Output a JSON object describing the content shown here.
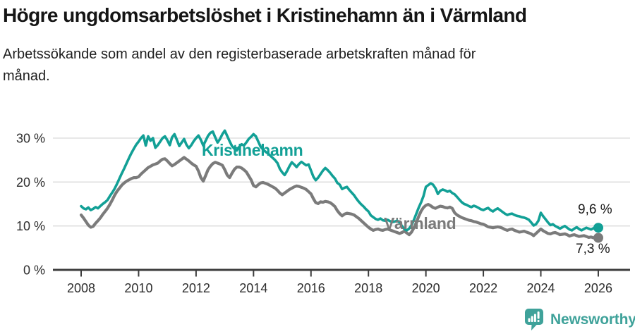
{
  "title": "Högre ungdomsarbetslöshet i Kristinehamn än i Värmland",
  "subtitle": "Arbetssökande som andel av den registerbaserade arbetskraften månad för månad.",
  "branding": {
    "logo_text": "Newsworthy"
  },
  "colors": {
    "kristinehamn": "#12A096",
    "varmland": "#7B7B7B",
    "grid": "#D9D9D9",
    "axis": "#3C3C3C",
    "tick_text": "#2E2E2E",
    "logo": "#3FA29A"
  },
  "chart_data": {
    "type": "line",
    "title": "Högre ungdomsarbetslöshet i Kristinehamn än i Värmland",
    "subtitle": "Arbetssökande som andel av den registerbaserade arbetskraften månad för månad.",
    "unit": "%",
    "x_start_year": 2008,
    "x_frequency": "monthly",
    "x_tick_labels": [
      "2008",
      "2010",
      "2012",
      "2014",
      "2016",
      "2018",
      "2020",
      "2022",
      "2024",
      "2026"
    ],
    "y_ticks": [
      0,
      10,
      20,
      30
    ],
    "y_tick_labels": [
      "0 %",
      "10 %",
      "20 %",
      "30 %"
    ],
    "ylim": [
      0,
      33
    ],
    "grid": "horizontal",
    "legend_position": "inline-labels",
    "series": [
      {
        "name": "Kristinehamn",
        "color": "#12A096",
        "end_label": "9,6 %",
        "end_value": 9.6,
        "values": [
          14.5,
          14.0,
          13.8,
          14.2,
          13.6,
          13.9,
          14.3,
          14.0,
          14.5,
          15.0,
          15.4,
          15.9,
          16.8,
          17.6,
          18.5,
          19.6,
          20.8,
          22.0,
          23.1,
          24.3,
          25.5,
          26.6,
          27.6,
          28.5,
          29.2,
          30.0,
          30.6,
          28.3,
          30.4,
          29.4,
          30.0,
          27.8,
          28.4,
          29.2,
          30.0,
          30.4,
          29.5,
          28.4,
          30.2,
          30.9,
          29.6,
          28.2,
          29.0,
          29.8,
          28.5,
          27.7,
          28.4,
          29.3,
          30.0,
          30.6,
          29.6,
          28.3,
          29.4,
          30.5,
          31.2,
          31.5,
          30.2,
          29.0,
          29.8,
          30.9,
          31.7,
          30.5,
          29.3,
          28.2,
          27.6,
          27.2,
          28.0,
          28.6,
          28.3,
          29.0,
          29.8,
          30.3,
          30.9,
          30.4,
          29.2,
          28.0,
          27.4,
          26.9,
          26.5,
          26.0,
          25.5,
          25.0,
          24.3,
          23.0,
          22.2,
          21.6,
          22.5,
          23.6,
          24.5,
          24.0,
          23.4,
          24.1,
          24.6,
          24.2,
          23.8,
          24.0,
          22.6,
          21.2,
          20.4,
          21.0,
          21.8,
          22.6,
          23.2,
          22.7,
          22.1,
          21.4,
          20.8,
          19.8,
          19.4,
          18.4,
          18.7,
          18.9,
          18.2,
          17.6,
          17.0,
          16.2,
          15.5,
          14.9,
          14.4,
          13.8,
          13.3,
          12.4,
          12.0,
          11.6,
          11.4,
          11.7,
          11.3,
          11.2,
          11.4,
          11.1,
          10.9,
          11.0,
          11.2,
          10.8,
          10.0,
          9.3,
          9.0,
          9.4,
          10.2,
          11.4,
          12.8,
          14.2,
          15.4,
          16.8,
          18.9,
          19.3,
          19.7,
          19.4,
          18.6,
          17.3,
          18.0,
          18.3,
          18.1,
          17.8,
          18.0,
          17.5,
          17.2,
          16.6,
          16.0,
          15.4,
          15.0,
          14.8,
          14.5,
          14.3,
          14.6,
          14.4,
          14.1,
          13.8,
          13.6,
          13.9,
          14.1,
          13.6,
          13.3,
          13.7,
          14.0,
          13.6,
          13.2,
          12.8,
          12.5,
          12.7,
          12.8,
          12.5,
          12.3,
          12.2,
          12.0,
          11.9,
          11.7,
          11.4,
          10.8,
          10.1,
          10.4,
          11.2,
          13.0,
          12.2,
          11.5,
          10.8,
          10.2,
          10.4,
          10.0,
          9.7,
          9.4,
          9.7,
          10.0,
          9.6,
          9.2,
          9.0,
          9.4,
          9.7,
          9.3,
          9.0,
          9.3,
          9.6,
          9.4,
          9.2,
          9.5,
          9.7,
          9.6
        ]
      },
      {
        "name": "Värmland",
        "color": "#7B7B7B",
        "end_label": "7,3 %",
        "end_value": 7.3,
        "values": [
          12.5,
          11.8,
          11.0,
          10.2,
          9.7,
          9.9,
          10.6,
          11.2,
          11.8,
          12.6,
          13.3,
          14.0,
          14.9,
          15.9,
          17.0,
          17.9,
          18.6,
          19.3,
          19.8,
          20.2,
          20.5,
          20.8,
          21.0,
          21.0,
          21.2,
          21.8,
          22.3,
          22.8,
          23.3,
          23.6,
          23.9,
          24.1,
          24.3,
          24.8,
          25.2,
          25.3,
          24.8,
          24.2,
          23.7,
          24.0,
          24.4,
          24.8,
          25.2,
          25.6,
          25.2,
          24.8,
          24.3,
          23.9,
          23.6,
          22.5,
          21.0,
          20.2,
          21.5,
          22.8,
          23.6,
          24.2,
          24.5,
          24.3,
          24.1,
          23.8,
          22.8,
          21.6,
          21.0,
          22.0,
          22.9,
          23.4,
          23.4,
          23.2,
          22.8,
          22.3,
          21.4,
          20.5,
          19.2,
          18.9,
          19.4,
          19.8,
          19.9,
          19.7,
          19.5,
          19.2,
          18.9,
          18.6,
          18.1,
          17.5,
          17.1,
          17.5,
          17.9,
          18.3,
          18.6,
          18.9,
          19.1,
          19.0,
          18.8,
          18.6,
          18.3,
          17.8,
          17.3,
          16.2,
          15.3,
          15.1,
          15.5,
          15.4,
          15.6,
          15.5,
          15.3,
          14.9,
          14.4,
          13.5,
          12.8,
          12.3,
          12.7,
          12.9,
          12.8,
          12.7,
          12.5,
          12.1,
          11.7,
          11.2,
          10.7,
          10.2,
          9.7,
          9.3,
          9.0,
          9.2,
          9.3,
          9.1,
          9.0,
          9.2,
          9.3,
          9.1,
          8.9,
          8.7,
          8.5,
          8.3,
          8.5,
          8.8,
          8.4,
          8.0,
          8.6,
          9.6,
          10.8,
          12.2,
          13.4,
          14.2,
          14.7,
          14.9,
          14.6,
          14.2,
          14.0,
          14.3,
          14.5,
          14.4,
          14.2,
          14.1,
          14.3,
          14.0,
          13.0,
          12.5,
          12.2,
          11.9,
          11.7,
          11.5,
          11.3,
          11.2,
          11.0,
          10.9,
          10.7,
          10.5,
          10.4,
          10.1,
          9.8,
          9.7,
          9.6,
          9.7,
          9.8,
          9.7,
          9.5,
          9.2,
          9.0,
          9.2,
          9.3,
          9.0,
          8.8,
          8.6,
          8.7,
          8.8,
          8.6,
          8.4,
          8.2,
          7.8,
          8.3,
          8.8,
          9.3,
          8.9,
          8.6,
          8.3,
          8.2,
          8.4,
          8.5,
          8.3,
          8.0,
          8.1,
          8.2,
          8.0,
          7.7,
          7.9,
          8.0,
          7.8,
          7.6,
          7.7,
          7.8,
          7.6,
          7.4,
          7.5,
          7.3,
          7.2,
          7.3
        ]
      }
    ]
  }
}
